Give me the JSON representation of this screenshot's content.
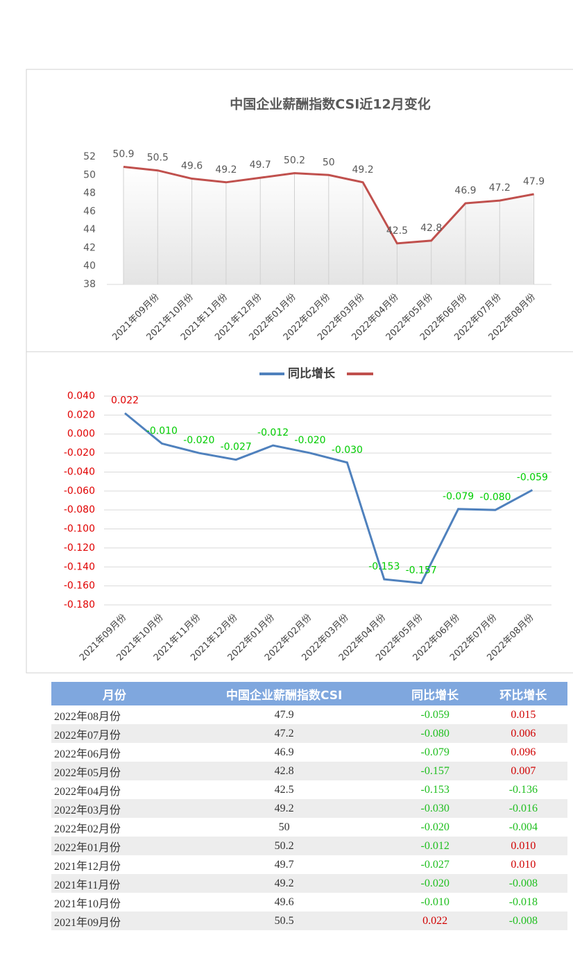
{
  "chart_data": [
    {
      "type": "line",
      "title": "中国企业薪酬指数CSI近12月变化",
      "categories": [
        null,
        "2021年09月份",
        "2021年10月份",
        "2021年11月份",
        "2021年12月份",
        "2022年01月份",
        "2022年02月份",
        "2022年03月份",
        "2022年04月份",
        "2022年05月份",
        "2022年06月份",
        "2022年07月份",
        "2022年08月份"
      ],
      "series": [
        {
          "color": "#c0504d",
          "values": [
            50.9,
            50.5,
            49.6,
            49.2,
            49.7,
            50.2,
            50,
            49.2,
            42.5,
            42.8,
            46.9,
            47.2,
            47.9
          ]
        }
      ],
      "ylim": [
        38,
        52
      ],
      "yticks": [
        38,
        40,
        42,
        44,
        46,
        48,
        50,
        52
      ]
    },
    {
      "type": "line",
      "categories": [
        "2021年09月份",
        "2021年10月份",
        "2021年11月份",
        "2021年12月份",
        "2022年01月份",
        "2022年02月份",
        "2022年03月份",
        "2022年04月份",
        "2022年05月份",
        "2022年06月份",
        "2022年07月份",
        "2022年08月份"
      ],
      "series": [
        {
          "name": "同比增长",
          "color": "#4f81bd",
          "values": [
            0.022,
            -0.01,
            -0.02,
            -0.027,
            -0.012,
            -0.02,
            -0.03,
            -0.153,
            -0.157,
            -0.079,
            -0.08,
            -0.059
          ],
          "value_labels": [
            "0.022",
            "-0.010",
            "-0.020",
            "-0.027",
            "-0.012",
            "-0.020",
            "-0.030",
            "-0.153",
            "-0.157",
            "-0.079",
            "-0.080",
            "-0.059"
          ]
        }
      ],
      "ylim": [
        -0.18,
        0.04
      ],
      "yticks": [
        {
          "value": 0.04,
          "label": "0.040"
        },
        {
          "value": 0.02,
          "label": "0.020"
        },
        {
          "value": 0,
          "label": "0.000"
        },
        {
          "value": -0.02,
          "label": "-0.020"
        },
        {
          "value": -0.04,
          "label": "-0.040"
        },
        {
          "value": -0.06,
          "label": "-0.060"
        },
        {
          "value": -0.08,
          "label": "-0.080"
        },
        {
          "value": -0.1,
          "label": "-0.100"
        },
        {
          "value": -0.12,
          "label": "-0.120"
        },
        {
          "value": -0.14,
          "label": "-0.140"
        },
        {
          "value": -0.16,
          "label": "-0.160"
        },
        {
          "value": -0.18,
          "label": "-0.180"
        }
      ],
      "grid": true
    }
  ],
  "table": {
    "header": [
      "月份",
      "中国企业薪酬指数CSI",
      "同比增长",
      "环比增长"
    ],
    "rows": [
      [
        "2022年08月份",
        "47.9",
        "-0.059",
        "0.015"
      ],
      [
        "2022年07月份",
        "47.2",
        "-0.080",
        "0.006"
      ],
      [
        "2022年06月份",
        "46.9",
        "-0.079",
        "0.096"
      ],
      [
        "2022年05月份",
        "42.8",
        "-0.157",
        "0.007"
      ],
      [
        "2022年04月份",
        "42.5",
        "-0.153",
        "-0.136"
      ],
      [
        "2022年03月份",
        "49.2",
        "-0.030",
        "-0.016"
      ],
      [
        "2022年02月份",
        "50",
        "-0.020",
        "-0.004"
      ],
      [
        "2022年01月份",
        "50.2",
        "-0.012",
        "0.010"
      ],
      [
        "2021年12月份",
        "49.7",
        "-0.027",
        "0.010"
      ],
      [
        "2021年11月份",
        "49.2",
        "-0.020",
        "-0.008"
      ],
      [
        "2021年10月份",
        "49.6",
        "-0.010",
        "-0.018"
      ],
      [
        "2021年09月份",
        "50.5",
        "0.022",
        "-0.008"
      ]
    ]
  }
}
